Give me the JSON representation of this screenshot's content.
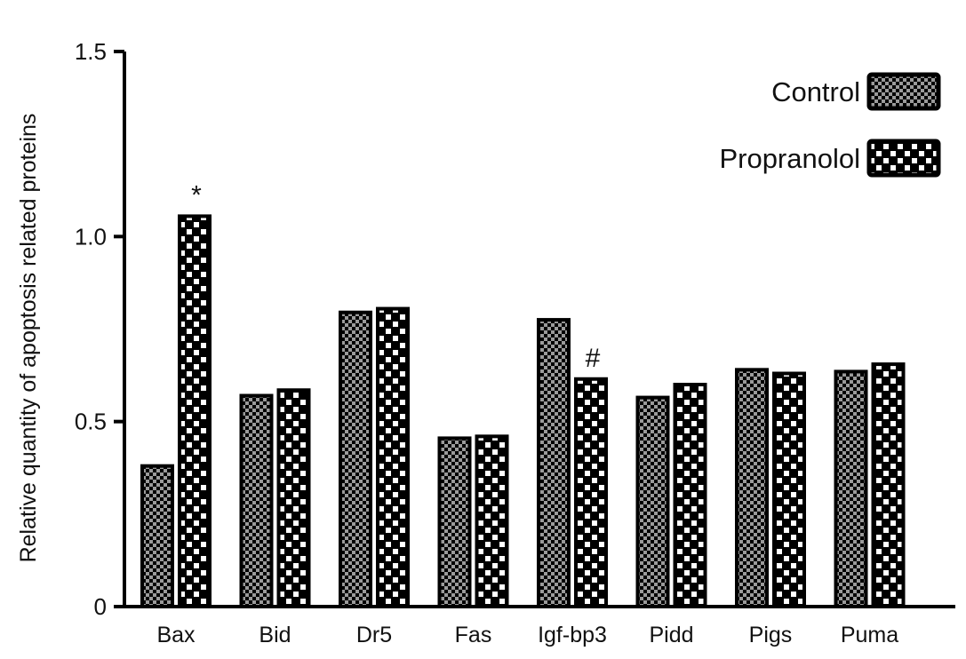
{
  "chart_data": {
    "type": "bar",
    "title": "",
    "xlabel": "",
    "ylabel": "Relative quantity of apoptosis related proteins",
    "ylim": [
      0,
      1.5
    ],
    "yticks": [
      "0",
      "0.5",
      "1.0",
      "1.5"
    ],
    "ytick_values": [
      0,
      0.5,
      1.0,
      1.5
    ],
    "categories": [
      "Bax",
      "Bid",
      "Dr5",
      "Fas",
      "Igf-bp3",
      "Pidd",
      "Pigs",
      "Puma"
    ],
    "series": [
      {
        "name": "Control",
        "values": [
          0.38,
          0.57,
          0.795,
          0.455,
          0.775,
          0.565,
          0.64,
          0.635
        ],
        "pattern": "fine-checker",
        "color": "#000000"
      },
      {
        "name": "Propranolol",
        "values": [
          1.055,
          0.585,
          0.805,
          0.46,
          0.615,
          0.6,
          0.63,
          0.655
        ],
        "pattern": "coarse-checker",
        "color": "#000000"
      }
    ],
    "annotations": [
      {
        "text": "*",
        "category": "Bax",
        "series": "Propranolol"
      },
      {
        "text": "#",
        "category": "Igf-bp3",
        "series": "Propranolol"
      }
    ],
    "legend_position": "top-right",
    "grid": false
  }
}
